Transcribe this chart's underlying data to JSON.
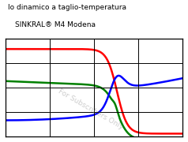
{
  "title_line1": "lo dinamico a taglio-temperatura",
  "title_line2": "SINKRAL® M4 Modena",
  "watermark": "For Subscribers Only",
  "background_color": "#ffffff",
  "line_colors": [
    "#ff0000",
    "#008000",
    "#0000ff"
  ],
  "grid_color": "#000000",
  "figsize": [
    2.38,
    1.8
  ],
  "dpi": 100
}
